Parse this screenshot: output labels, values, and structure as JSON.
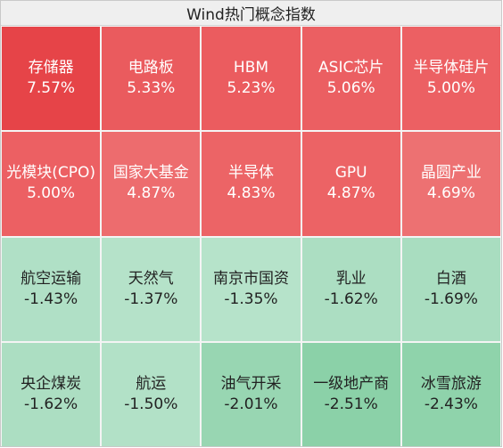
{
  "title": "Wind热门概念指数",
  "tiles": [
    {
      "name": "存储器",
      "pct": "7.57%",
      "color": "#e64448",
      "dir": "up"
    },
    {
      "name": "电路板",
      "pct": "5.33%",
      "color": "#ea5b5e",
      "dir": "up"
    },
    {
      "name": "HBM",
      "pct": "5.23%",
      "color": "#eb5c5f",
      "dir": "up"
    },
    {
      "name": "ASIC芯片",
      "pct": "5.06%",
      "color": "#eb5f62",
      "dir": "up"
    },
    {
      "name": "半导体硅片",
      "pct": "5.00%",
      "color": "#ec6063",
      "dir": "up"
    },
    {
      "name": "光模块(CPO)",
      "pct": "5.00%",
      "color": "#ec6063",
      "dir": "up"
    },
    {
      "name": "国家大基金",
      "pct": "4.87%",
      "color": "#ed6c6e",
      "dir": "up"
    },
    {
      "name": "半导体",
      "pct": "4.83%",
      "color": "#ec6466",
      "dir": "up"
    },
    {
      "name": "GPU",
      "pct": "4.87%",
      "color": "#ec6365",
      "dir": "up"
    },
    {
      "name": "晶圆产业",
      "pct": "4.69%",
      "color": "#ed7172",
      "dir": "up"
    },
    {
      "name": "航空运输",
      "pct": "-1.43%",
      "color": "#b0e0c6",
      "dir": "down"
    },
    {
      "name": "天然气",
      "pct": "-1.37%",
      "color": "#b5e2c9",
      "dir": "down"
    },
    {
      "name": "南京市国资",
      "pct": "-1.35%",
      "color": "#b6e3ca",
      "dir": "down"
    },
    {
      "name": "乳业",
      "pct": "-1.62%",
      "color": "#acdec2",
      "dir": "down"
    },
    {
      "name": "白酒",
      "pct": "-1.69%",
      "color": "#a9ddc0",
      "dir": "down"
    },
    {
      "name": "央企煤炭",
      "pct": "-1.62%",
      "color": "#acdec2",
      "dir": "down"
    },
    {
      "name": "航运",
      "pct": "-1.50%",
      "color": "#b2e1c7",
      "dir": "down"
    },
    {
      "name": "油气开采",
      "pct": "-2.01%",
      "color": "#98d6b2",
      "dir": "down"
    },
    {
      "name": "一级地产商",
      "pct": "-2.51%",
      "color": "#8bd1a8",
      "dir": "down"
    },
    {
      "name": "冰雪旅游",
      "pct": "-2.43%",
      "color": "#8fd3ab",
      "dir": "down"
    }
  ]
}
